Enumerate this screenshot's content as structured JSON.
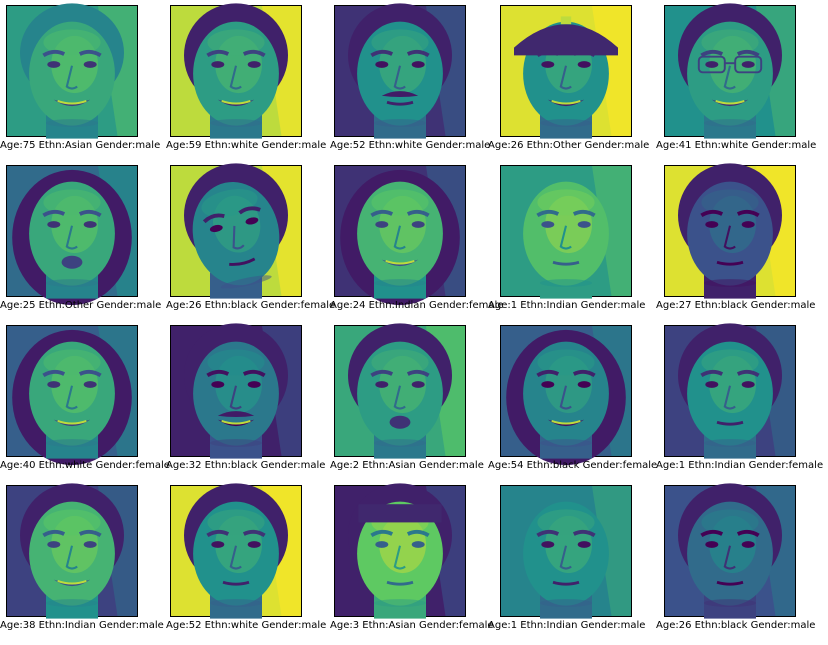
{
  "colormap": {
    "name": "viridis",
    "stops": [
      "#440154",
      "#3b528b",
      "#21918c",
      "#5ec962",
      "#fde725"
    ]
  },
  "faces": [
    {
      "caption": "Age:75  Ethn:Asian  Gender:male",
      "pose": "smile",
      "skin": 0.6,
      "background": 0.55,
      "hair": "short-light",
      "glasses": false,
      "mustache": false,
      "hat": false
    },
    {
      "caption": "Age:59  Ethn:white  Gender:male",
      "pose": "smile",
      "skin": 0.55,
      "background": 0.9,
      "hair": "dark",
      "glasses": false,
      "mustache": false,
      "hat": false
    },
    {
      "caption": "Age:52  Ethn:white  Gender:male",
      "pose": "neutral",
      "skin": 0.5,
      "background": 0.15,
      "hair": "dark",
      "glasses": false,
      "mustache": true,
      "hat": false
    },
    {
      "caption": "Age:26  Ethn:Other  Gender:male",
      "pose": "smile",
      "skin": 0.5,
      "background": 0.95,
      "hair": "none",
      "glasses": false,
      "mustache": false,
      "hat": true
    },
    {
      "caption": "Age:41  Ethn:white  Gender:male",
      "pose": "smile",
      "skin": 0.55,
      "background": 0.5,
      "hair": "short-dark",
      "glasses": true,
      "mustache": false,
      "hat": false
    },
    {
      "caption": "Age:25  Ethn:Other  Gender:male",
      "pose": "open",
      "skin": 0.6,
      "background": 0.35,
      "hair": "long-dark",
      "glasses": false,
      "mustache": false,
      "hat": false
    },
    {
      "caption": "Age:26  Ethn:black  Gender:female",
      "pose": "tilted",
      "skin": 0.45,
      "background": 0.9,
      "hair": "dark",
      "glasses": false,
      "mustache": false,
      "hat": false
    },
    {
      "caption": "Age:24  Ethn:Indian  Gender:female",
      "pose": "smile",
      "skin": 0.65,
      "background": 0.15,
      "hair": "long-dark",
      "glasses": false,
      "mustache": false,
      "hat": false
    },
    {
      "caption": "Age:1  Ethn:Indian  Gender:male",
      "pose": "neutral",
      "skin": 0.7,
      "background": 0.55,
      "hair": "none",
      "glasses": false,
      "mustache": false,
      "hat": false
    },
    {
      "caption": "Age:27  Ethn:black  Gender:male",
      "pose": "neutral",
      "skin": 0.25,
      "background": 0.95,
      "hair": "short-dark",
      "glasses": false,
      "mustache": false,
      "hat": false
    },
    {
      "caption": "Age:40  Ethn:white  Gender:female",
      "pose": "smile",
      "skin": 0.6,
      "background": 0.3,
      "hair": "long-dark",
      "glasses": false,
      "mustache": false,
      "hat": false
    },
    {
      "caption": "Age:32  Ethn:black  Gender:male",
      "pose": "smile",
      "skin": 0.4,
      "background": 0.1,
      "hair": "short-dark",
      "glasses": false,
      "mustache": true,
      "hat": false
    },
    {
      "caption": "Age:2  Ethn:Asian  Gender:male",
      "pose": "open",
      "skin": 0.55,
      "background": 0.6,
      "hair": "dark",
      "glasses": false,
      "mustache": false,
      "hat": false
    },
    {
      "caption": "Age:54  Ethn:black  Gender:female",
      "pose": "smile",
      "skin": 0.45,
      "background": 0.3,
      "hair": "curly",
      "glasses": false,
      "mustache": false,
      "hat": false
    },
    {
      "caption": "Age:1  Ethn:Indian  Gender:female",
      "pose": "neutral",
      "skin": 0.5,
      "background": 0.2,
      "hair": "dark",
      "glasses": false,
      "mustache": false,
      "hat": false
    },
    {
      "caption": "Age:38  Ethn:Indian  Gender:male",
      "pose": "smile",
      "skin": 0.65,
      "background": 0.2,
      "hair": "dark",
      "glasses": false,
      "mustache": false,
      "hat": false
    },
    {
      "caption": "Age:52  Ethn:white  Gender:male",
      "pose": "neutral",
      "skin": 0.5,
      "background": 0.95,
      "hair": "short-dark",
      "glasses": false,
      "mustache": false,
      "hat": false
    },
    {
      "caption": "Age:3  Ethn:Asian  Gender:female",
      "pose": "neutral",
      "skin": 0.75,
      "background": 0.1,
      "hair": "bangs",
      "glasses": false,
      "mustache": false,
      "hat": false
    },
    {
      "caption": "Age:1  Ethn:Indian  Gender:male",
      "pose": "neutral",
      "skin": 0.5,
      "background": 0.45,
      "hair": "none",
      "glasses": false,
      "mustache": false,
      "hat": false
    },
    {
      "caption": "Age:26  Ethn:black  Gender:male",
      "pose": "neutral",
      "skin": 0.35,
      "background": 0.25,
      "hair": "short-dark",
      "glasses": false,
      "mustache": false,
      "hat": false
    }
  ]
}
